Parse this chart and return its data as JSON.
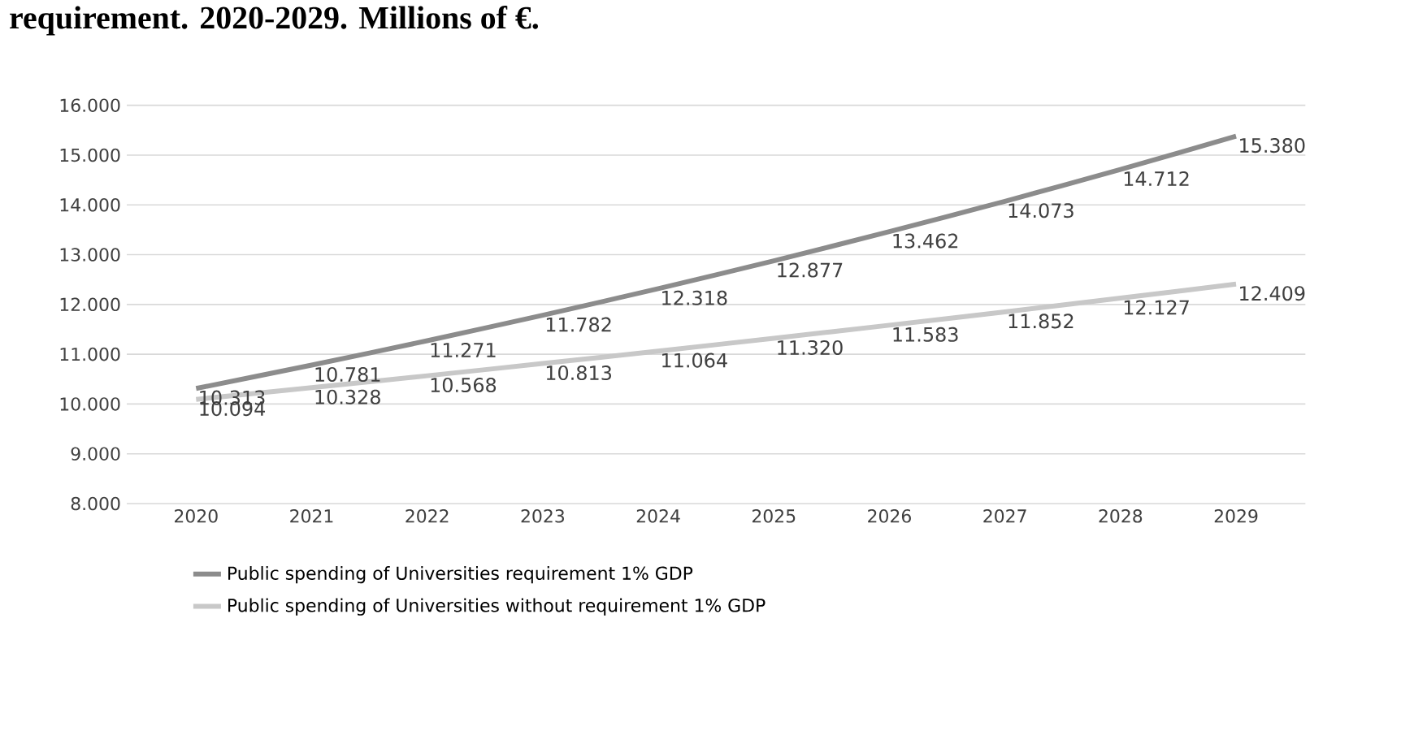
{
  "chart_data": {
    "type": "line",
    "title": "requirement. 2020-2029. Millions of €.",
    "categories": [
      "2020",
      "2021",
      "2022",
      "2023",
      "2024",
      "2025",
      "2026",
      "2027",
      "2028",
      "2029"
    ],
    "series": [
      {
        "name": "Public spending of Universities requirement 1% GDP",
        "color": "#8c8c8c",
        "values": [
          10313,
          10781,
          11271,
          11782,
          12318,
          12877,
          13462,
          14073,
          14712,
          15380
        ],
        "value_labels": [
          "10.313",
          "10.781",
          "11.271",
          "11.782",
          "12.318",
          "12.877",
          "13.462",
          "14.073",
          "14.712",
          "15.380"
        ]
      },
      {
        "name": "Public spending of Universities without requirement 1% GDP",
        "color": "#c8c8c8",
        "values": [
          10094,
          10328,
          10568,
          10813,
          11064,
          11320,
          11583,
          11852,
          12127,
          12409
        ],
        "value_labels": [
          "10.094",
          "10.328",
          "10.568",
          "10.813",
          "11.064",
          "11.320",
          "11.583",
          "11.852",
          "12.127",
          "12.409"
        ]
      }
    ],
    "ylim": [
      8000,
      16000
    ],
    "yticks": [
      {
        "value": 8000,
        "label": "8.000"
      },
      {
        "value": 9000,
        "label": "9.000"
      },
      {
        "value": 10000,
        "label": "10.000"
      },
      {
        "value": 11000,
        "label": "11.000"
      },
      {
        "value": 12000,
        "label": "12.000"
      },
      {
        "value": 13000,
        "label": "13.000"
      },
      {
        "value": 14000,
        "label": "14.000"
      },
      {
        "value": 15000,
        "label": "15.000"
      },
      {
        "value": 16000,
        "label": "16.000"
      }
    ],
    "grid": "y",
    "legend": "bottom",
    "marker": "none",
    "line_style": "solid"
  }
}
